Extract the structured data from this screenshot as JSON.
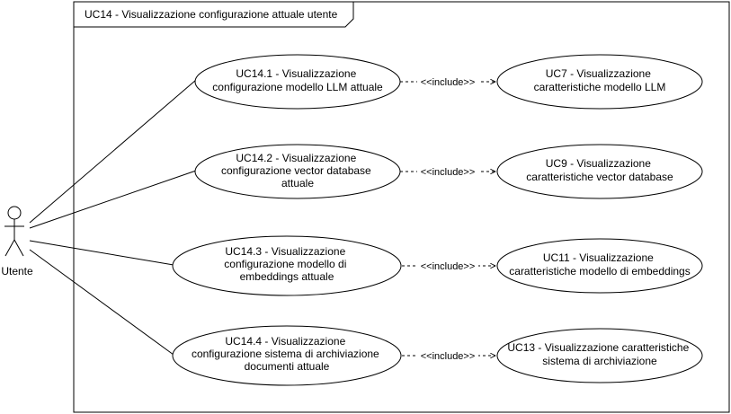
{
  "diagram": {
    "type": "uml-use-case",
    "system_boundary_title": "UC14 - Visualizzazione configurazione attuale utente",
    "actor": {
      "label": "Utente"
    },
    "include_label": "<<include>>",
    "use_cases": [
      {
        "id": "UC14.1",
        "lines": [
          "UC14.1 - Visualizzazione",
          "configurazione modello LLM attuale"
        ]
      },
      {
        "id": "UC14.2",
        "lines": [
          "UC14.2 - Visualizzazione",
          "configurazione vector database",
          "attuale"
        ]
      },
      {
        "id": "UC14.3",
        "lines": [
          "UC14.3 - Visualizzazione",
          "configurazione modello di",
          "embeddings attuale"
        ]
      },
      {
        "id": "UC14.4",
        "lines": [
          "UC14.4 - Visualizzazione",
          "configurazione sistema di archiviazione",
          "documenti attuale"
        ]
      },
      {
        "id": "UC7",
        "lines": [
          "UC7 - Visualizzazione",
          "caratteristiche modello LLM"
        ]
      },
      {
        "id": "UC9",
        "lines": [
          "UC9 - Visualizzazione",
          "caratteristiche vector database"
        ]
      },
      {
        "id": "UC11",
        "lines": [
          "UC11 - Visualizzazione",
          "caratteristiche modello di embeddings"
        ]
      },
      {
        "id": "UC13",
        "lines": [
          "UC13 - Visualizzazione caratteristiche",
          "sistema di archiviazione"
        ]
      }
    ],
    "associations": [
      {
        "from": "actor",
        "to": "UC14.1"
      },
      {
        "from": "actor",
        "to": "UC14.2"
      },
      {
        "from": "actor",
        "to": "UC14.3"
      },
      {
        "from": "actor",
        "to": "UC14.4"
      }
    ],
    "includes": [
      {
        "from": "UC14.1",
        "to": "UC7"
      },
      {
        "from": "UC14.2",
        "to": "UC9"
      },
      {
        "from": "UC14.3",
        "to": "UC11"
      },
      {
        "from": "UC14.4",
        "to": "UC13"
      }
    ]
  }
}
